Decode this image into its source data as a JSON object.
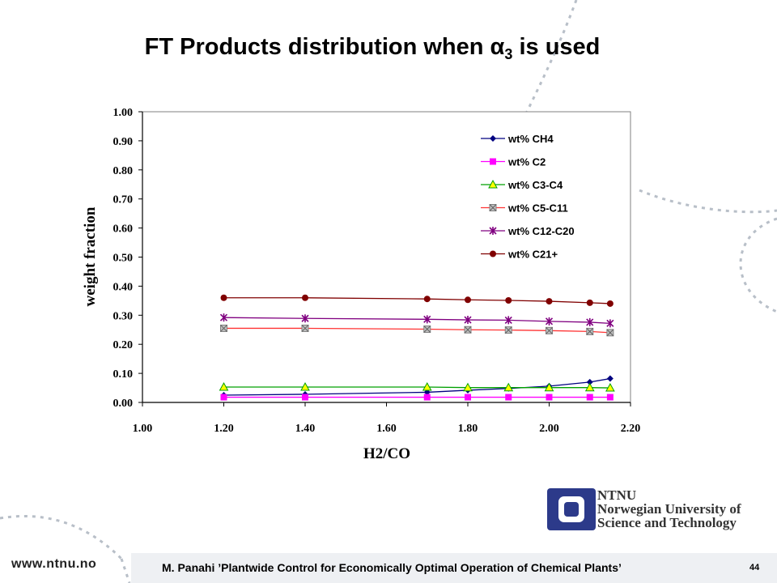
{
  "slide": {
    "title_main": "FT Products distribution when α",
    "title_sub": "3",
    "title_end": " is used",
    "footer_url": "www.ntnu.no",
    "footer_text": "M. Panahi ’Plantwide Control for Economically Optimal Operation of Chemical Plants’",
    "page_number": "44",
    "logo": {
      "line1": "NTNU",
      "line2": "Norwegian University of",
      "line3": "Science and Technology"
    }
  },
  "chart_data": {
    "type": "line",
    "xlabel": "H2/CO",
    "ylabel": "weight fraction",
    "xlim": [
      1.0,
      2.2
    ],
    "ylim": [
      0.0,
      1.0
    ],
    "x_ticks": [
      "1.00",
      "1.20",
      "1.40",
      "1.60",
      "1.80",
      "2.00",
      "2.20"
    ],
    "y_ticks": [
      "0.00",
      "0.10",
      "0.20",
      "0.30",
      "0.40",
      "0.50",
      "0.60",
      "0.70",
      "0.80",
      "0.90",
      "1.00"
    ],
    "x": [
      1.2,
      1.4,
      1.7,
      1.8,
      1.9,
      2.0,
      2.1,
      2.15
    ],
    "legend_position": "top-right",
    "grid": false,
    "series": [
      {
        "name": "wt% CH4",
        "color": "#000080",
        "marker": "diamond",
        "values": [
          0.025,
          0.028,
          0.035,
          0.042,
          0.048,
          0.056,
          0.07,
          0.082
        ]
      },
      {
        "name": "wt% C2",
        "color": "#ff00ff",
        "marker": "square",
        "values": [
          0.018,
          0.018,
          0.018,
          0.018,
          0.018,
          0.018,
          0.018,
          0.018
        ]
      },
      {
        "name": "wt% C3-C4",
        "color": "#00a000",
        "marker": "triangle",
        "values": [
          0.053,
          0.053,
          0.053,
          0.051,
          0.051,
          0.051,
          0.051,
          0.05
        ]
      },
      {
        "name": "wt% C5-C11",
        "color": "#ff3333",
        "marker": "xsquare",
        "values": [
          0.255,
          0.255,
          0.252,
          0.25,
          0.249,
          0.247,
          0.244,
          0.24
        ]
      },
      {
        "name": "wt% C12-C20",
        "color": "#800080",
        "marker": "star",
        "values": [
          0.292,
          0.289,
          0.286,
          0.284,
          0.283,
          0.279,
          0.276,
          0.272
        ]
      },
      {
        "name": "wt% C21+",
        "color": "#800000",
        "marker": "circle",
        "values": [
          0.36,
          0.36,
          0.356,
          0.353,
          0.351,
          0.348,
          0.343,
          0.34
        ]
      }
    ]
  }
}
